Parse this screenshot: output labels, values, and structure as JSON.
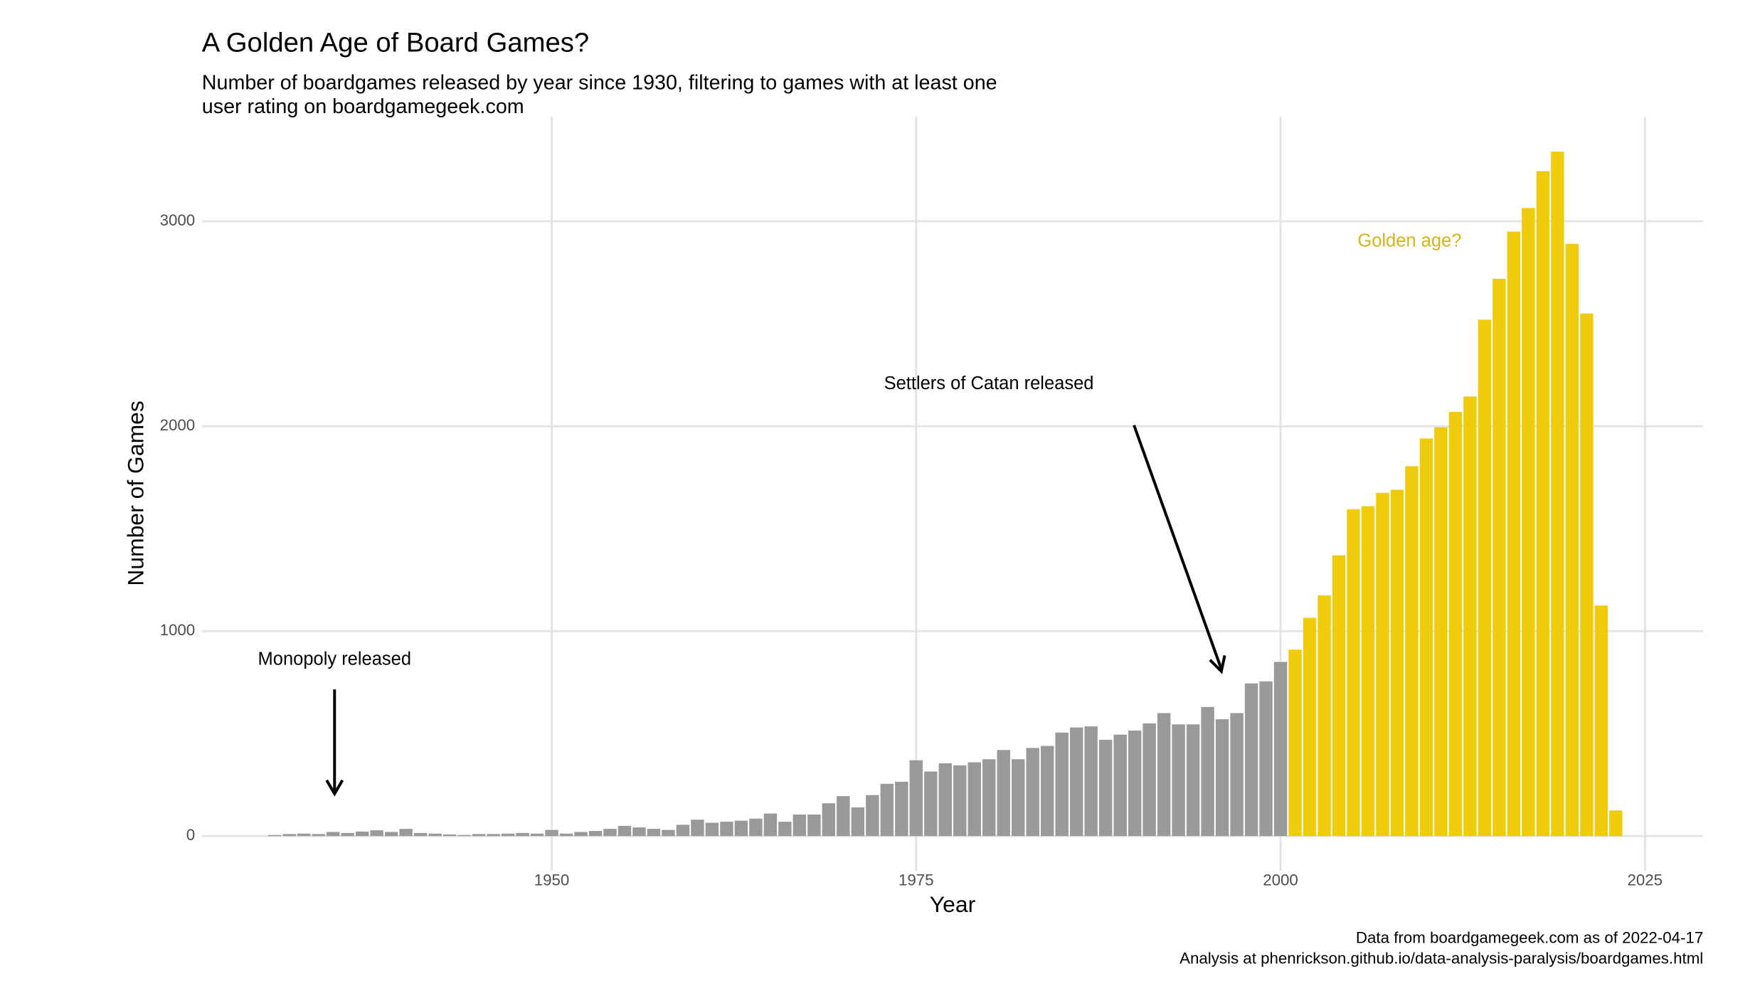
{
  "chart_data": {
    "type": "bar",
    "title": "A Golden Age of Board Games?",
    "subtitle": [
      "Number of boardgames released by year since 1930, filtering to games with at least one",
      "user rating on boardgamegeek.com"
    ],
    "x_label": "Year",
    "y_label": "Number of Games",
    "caption": [
      "Data from boardgamegeek.com as of 2022-04-17",
      "Analysis at phenrickson.github.io/data-analysis-paralysis/boardgames.html"
    ],
    "annotations": [
      "Monopoly released",
      "Settlers of Catan released",
      "Golden age?"
    ],
    "annotation_colors": [
      "#000000",
      "#000000",
      "#d9b411"
    ],
    "series": [
      {
        "color": "#999999",
        "x": [
          1931,
          1932,
          1933,
          1934,
          1935,
          1936,
          1937,
          1938,
          1939,
          1940,
          1941,
          1942,
          1943,
          1944,
          1945,
          1946,
          1947,
          1948,
          1949,
          1950,
          1951,
          1952,
          1953,
          1954,
          1955,
          1956,
          1957,
          1958,
          1959,
          1960,
          1961,
          1962,
          1963,
          1964,
          1965,
          1966,
          1967,
          1968,
          1969,
          1970,
          1971,
          1972,
          1973,
          1974,
          1975,
          1976,
          1977,
          1978,
          1979,
          1980,
          1981,
          1982,
          1983,
          1984,
          1985,
          1986,
          1987,
          1988,
          1989,
          1990,
          1991,
          1992,
          1993,
          1994,
          1995,
          1996,
          1997,
          1998,
          1999,
          2000
        ],
        "values": [
          5,
          10,
          12,
          10,
          20,
          15,
          22,
          28,
          20,
          35,
          15,
          12,
          8,
          5,
          10,
          10,
          12,
          15,
          12,
          30,
          12,
          20,
          25,
          35,
          50,
          42,
          35,
          30,
          55,
          80,
          65,
          70,
          75,
          85,
          110,
          70,
          105,
          105,
          160,
          195,
          140,
          200,
          255,
          265,
          370,
          315,
          355,
          345,
          360,
          375,
          420,
          375,
          430,
          440,
          505,
          530,
          535,
          470,
          495,
          515,
          550,
          600,
          545,
          545,
          630,
          570,
          600,
          745,
          755,
          850
        ]
      },
      {
        "color": "#f0cb0b",
        "x": [
          2001,
          2002,
          2003,
          2004,
          2005,
          2006,
          2007,
          2008,
          2009,
          2010,
          2011,
          2012,
          2013,
          2014,
          2015,
          2016,
          2017,
          2018,
          2019,
          2020,
          2021,
          2022,
          2023
        ],
        "values": [
          910,
          1065,
          1175,
          1370,
          1595,
          1610,
          1675,
          1690,
          1805,
          1940,
          1995,
          2070,
          2145,
          2520,
          2720,
          2950,
          3065,
          3245,
          3340,
          2890,
          2550,
          1125,
          125
        ]
      }
    ],
    "xlim": [
      1926,
      2029
    ],
    "xticks": [
      1950,
      1975,
      2000,
      2025
    ],
    "ylim": [
      -170,
      3510
    ],
    "yticks": [
      0,
      1000,
      2000,
      3000
    ],
    "grid": true
  }
}
